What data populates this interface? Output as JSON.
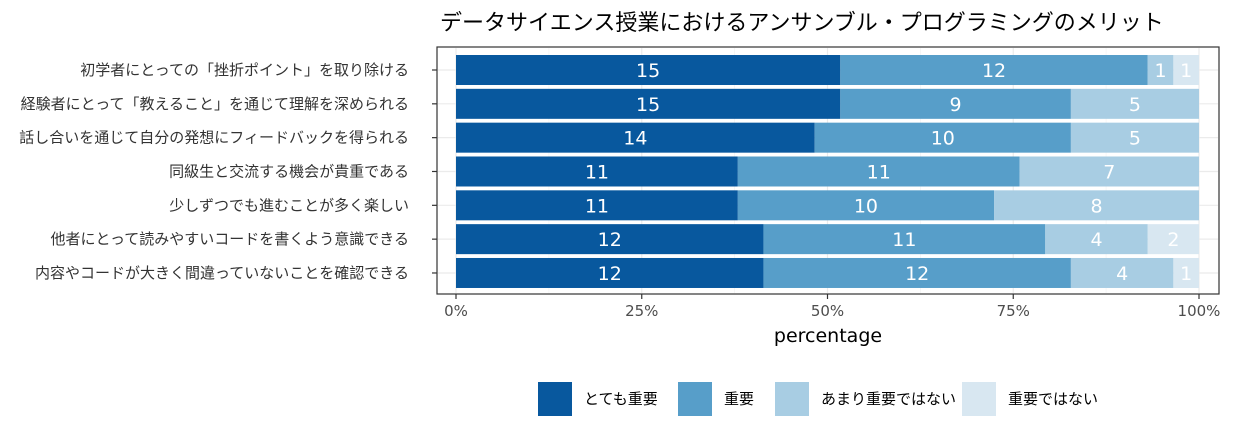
{
  "chart_data": {
    "type": "bar",
    "orientation": "horizontal",
    "stacked": true,
    "normalized": true,
    "title": "データサイエンス授業におけるアンサンブル・プログラミングのメリット",
    "xlabel": "percentage",
    "ylabel": "",
    "xlim": [
      0,
      1
    ],
    "x_ticks": [
      "0%",
      "25%",
      "50%",
      "75%",
      "100%"
    ],
    "grid": true,
    "legend_position": "bottom",
    "categories": [
      "初学者にとっての「挫折ポイント」を取り除ける",
      "経験者にとって「教えること」を通じて理解を深められる",
      "話し合いを通じて自分の発想にフィードバックを得られる",
      "同級生と交流する機会が貴重である",
      "少しずつでも進むことが多く楽しい",
      "他者にとって読みやすいコードを書くよう意識できる",
      "内容やコードが大きく間違っていないことを確認できる"
    ],
    "series": [
      {
        "name": "とても重要",
        "color": "#08589e",
        "values": [
          15,
          15,
          14,
          11,
          11,
          12,
          12
        ]
      },
      {
        "name": "重要",
        "color": "#579ec9",
        "values": [
          12,
          9,
          10,
          11,
          10,
          11,
          12
        ]
      },
      {
        "name": "あまり重要ではない",
        "color": "#a8cde3",
        "values": [
          1,
          5,
          5,
          7,
          8,
          4,
          4
        ]
      },
      {
        "name": "重要ではない",
        "color": "#d8e7f1",
        "values": [
          1,
          0,
          0,
          0,
          0,
          2,
          1
        ]
      }
    ]
  }
}
